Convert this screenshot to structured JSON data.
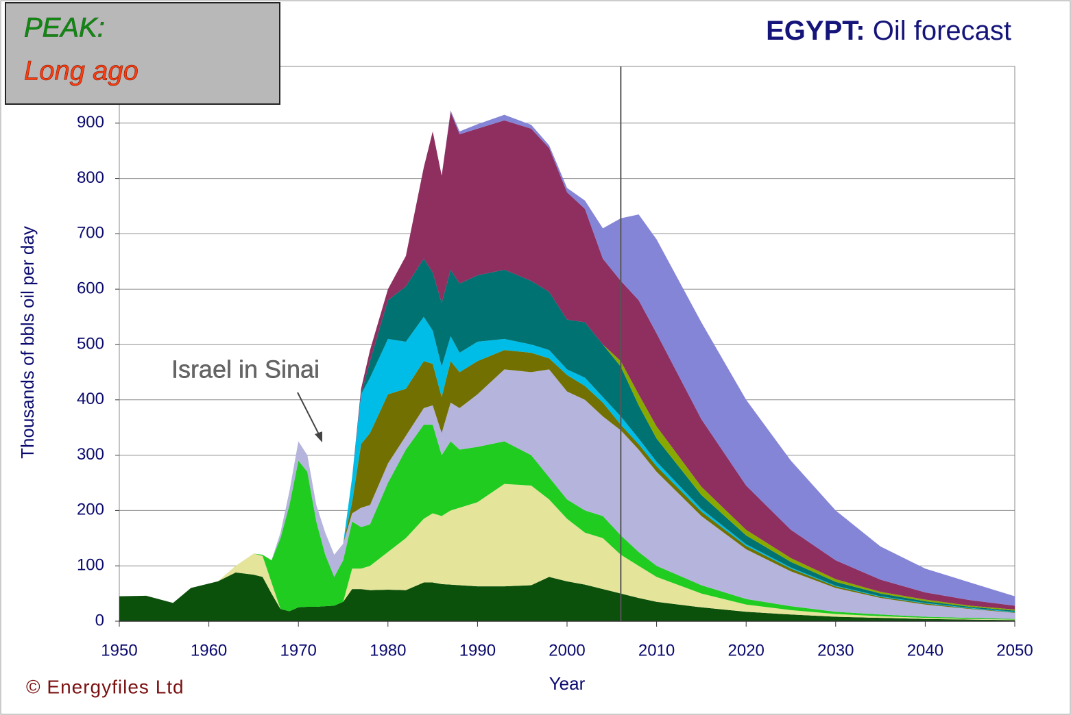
{
  "chart_data": {
    "type": "stacked_area",
    "title": "EGYPT:",
    "subtitle": "Oil forecast",
    "peak_label": "PEAK:",
    "peak_value": "Long ago",
    "annotation": "Israel in Sinai",
    "copyright": "© Energyfiles Ltd",
    "xlabel": "Year",
    "ylabel": "Thousands of bbls oil per day",
    "vline": 2006,
    "grid": true,
    "xlim": [
      1950,
      2050
    ],
    "ylim": [
      0,
      1000
    ],
    "xticks": [
      1950,
      1960,
      1970,
      1980,
      1990,
      2000,
      2010,
      2020,
      2030,
      2040,
      2050
    ],
    "yticks": [
      0,
      100,
      200,
      300,
      400,
      500,
      600,
      700,
      800,
      900
    ],
    "x": [
      1950,
      1953,
      1956,
      1958,
      1961,
      1963,
      1965,
      1966,
      1967,
      1968,
      1969,
      1970,
      1971,
      1972,
      1973,
      1974,
      1975,
      1976,
      1977,
      1978,
      1980,
      1982,
      1984,
      1985,
      1986,
      1987,
      1988,
      1990,
      1993,
      1996,
      1998,
      2000,
      2002,
      2004,
      2006,
      2008,
      2010,
      2015,
      2020,
      2025,
      2030,
      2035,
      2040,
      2045,
      2050
    ],
    "series": [
      {
        "color": "#0b500b",
        "values": [
          45,
          46,
          33,
          60,
          72,
          88,
          84,
          80,
          50,
          22,
          18,
          25,
          26,
          26,
          27,
          28,
          35,
          58,
          58,
          56,
          57,
          56,
          70,
          70,
          67,
          66,
          65,
          63,
          63,
          65,
          80,
          72,
          66,
          58,
          50,
          42,
          35,
          25,
          17,
          12,
          8,
          6,
          4,
          3,
          2
        ]
      },
      {
        "color": "#e4e49a",
        "values": [
          0,
          0,
          0,
          0,
          0,
          12,
          38,
          38,
          20,
          0,
          0,
          0,
          0,
          0,
          0,
          0,
          0,
          37,
          37,
          44,
          68,
          94,
          115,
          125,
          123,
          134,
          140,
          152,
          185,
          180,
          140,
          113,
          94,
          92,
          70,
          58,
          45,
          25,
          13,
          8,
          5,
          3,
          2,
          1,
          1
        ]
      },
      {
        "color": "#20cc20",
        "values": [
          0,
          0,
          0,
          0,
          0,
          0,
          0,
          2,
          40,
          128,
          192,
          265,
          244,
          154,
          93,
          52,
          75,
          85,
          75,
          75,
          125,
          160,
          170,
          160,
          110,
          125,
          105,
          100,
          77,
          55,
          40,
          35,
          40,
          40,
          35,
          25,
          20,
          15,
          10,
          7,
          4,
          3,
          2,
          2,
          1
        ]
      },
      {
        "color": "#b4b4dc",
        "values": [
          0,
          0,
          0,
          0,
          0,
          0,
          0,
          0,
          0,
          10,
          25,
          35,
          30,
          30,
          40,
          40,
          30,
          15,
          35,
          35,
          35,
          25,
          30,
          35,
          40,
          70,
          75,
          95,
          130,
          150,
          195,
          195,
          200,
          180,
          190,
          185,
          170,
          125,
          90,
          63,
          43,
          30,
          22,
          16,
          11
        ]
      },
      {
        "color": "#727000",
        "values": [
          0,
          0,
          0,
          0,
          0,
          0,
          0,
          0,
          0,
          0,
          0,
          0,
          0,
          0,
          0,
          0,
          0,
          20,
          115,
          130,
          125,
          85,
          85,
          75,
          65,
          75,
          65,
          60,
          35,
          35,
          20,
          30,
          25,
          25,
          10,
          10,
          10,
          8,
          6,
          5,
          3,
          2,
          2,
          1,
          1
        ]
      },
      {
        "color": "#00bde8",
        "values": [
          0,
          0,
          0,
          0,
          0,
          0,
          0,
          0,
          0,
          0,
          0,
          0,
          0,
          0,
          0,
          0,
          0,
          45,
          90,
          100,
          100,
          85,
          80,
          60,
          55,
          45,
          35,
          35,
          20,
          15,
          15,
          10,
          15,
          10,
          15,
          10,
          8,
          5,
          3,
          2,
          1,
          1,
          1,
          1,
          1
        ]
      },
      {
        "color": "#007272",
        "values": [
          0,
          0,
          0,
          0,
          0,
          0,
          0,
          0,
          0,
          0,
          0,
          0,
          0,
          0,
          0,
          0,
          0,
          0,
          0,
          30,
          70,
          100,
          105,
          105,
          115,
          120,
          125,
          120,
          125,
          115,
          105,
          90,
          100,
          95,
          90,
          60,
          42,
          25,
          16,
          10,
          7,
          5,
          3,
          2,
          2
        ]
      },
      {
        "color": "#88aa00",
        "values": [
          0,
          0,
          0,
          0,
          0,
          0,
          0,
          0,
          0,
          0,
          0,
          0,
          0,
          0,
          0,
          0,
          0,
          0,
          0,
          0,
          0,
          0,
          0,
          0,
          0,
          0,
          0,
          0,
          0,
          0,
          0,
          0,
          0,
          0,
          10,
          20,
          22,
          15,
          10,
          7,
          5,
          3,
          3,
          2,
          2
        ]
      },
      {
        "color": "#8e2f60",
        "values": [
          0,
          0,
          0,
          0,
          0,
          0,
          0,
          0,
          0,
          0,
          0,
          0,
          0,
          0,
          0,
          0,
          0,
          0,
          10,
          20,
          20,
          55,
          165,
          255,
          230,
          285,
          270,
          265,
          270,
          275,
          260,
          230,
          205,
          155,
          145,
          170,
          168,
          122,
          80,
          51,
          34,
          22,
          13,
          10,
          7
        ]
      },
      {
        "color": "#8585d8",
        "values": [
          0,
          0,
          0,
          0,
          0,
          0,
          0,
          0,
          0,
          0,
          0,
          0,
          0,
          0,
          0,
          0,
          0,
          0,
          0,
          0,
          0,
          0,
          0,
          0,
          0,
          3,
          5,
          8,
          10,
          7,
          5,
          8,
          15,
          55,
          113,
          155,
          170,
          175,
          155,
          125,
          90,
          60,
          43,
          32,
          17
        ]
      }
    ]
  }
}
